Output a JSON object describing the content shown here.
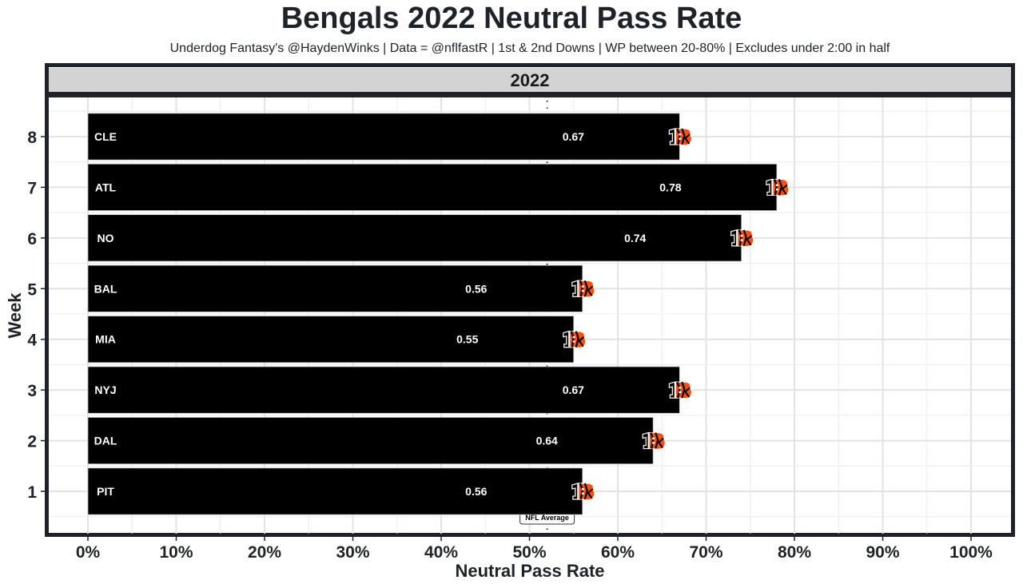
{
  "header": {
    "title": "Bengals 2022 Neutral Pass Rate",
    "subtitle": "Underdog Fantasy's @HaydenWinks | Data = @nflfastR | 1st & 2nd Downs | WP between 20-80% | Excludes under 2:00 in half"
  },
  "chart_data": {
    "type": "bar",
    "orientation": "horizontal",
    "title": "Bengals 2022 Neutral Pass Rate",
    "subtitle": "Underdog Fantasy's @HaydenWinks | Data = @nflfastR | 1st & 2nd Downs | WP between 20-80% | Excludes under 2:00 in half",
    "facet_label": "2022",
    "xlabel": "Neutral Pass Rate",
    "ylabel": "Week",
    "xlim": [
      0,
      1
    ],
    "x_ticks": [
      0,
      0.1,
      0.2,
      0.3,
      0.4,
      0.5,
      0.6,
      0.7,
      0.8,
      0.9,
      1.0
    ],
    "x_tick_labels": [
      "0%",
      "10%",
      "20%",
      "30%",
      "40%",
      "50%",
      "60%",
      "70%",
      "80%",
      "90%",
      "100%"
    ],
    "y_ticks": [
      1,
      2,
      3,
      4,
      5,
      6,
      7,
      8
    ],
    "grid": true,
    "bars": [
      {
        "week": 1,
        "opponent": "PIT",
        "value": 0.56,
        "label": "0.56"
      },
      {
        "week": 2,
        "opponent": "DAL",
        "value": 0.64,
        "label": "0.64"
      },
      {
        "week": 3,
        "opponent": "NYJ",
        "value": 0.67,
        "label": "0.67"
      },
      {
        "week": 4,
        "opponent": "MIA",
        "value": 0.55,
        "label": "0.55"
      },
      {
        "week": 5,
        "opponent": "BAL",
        "value": 0.56,
        "label": "0.56"
      },
      {
        "week": 6,
        "opponent": "NO",
        "value": 0.74,
        "label": "0.74"
      },
      {
        "week": 7,
        "opponent": "ATL",
        "value": 0.78,
        "label": "0.78"
      },
      {
        "week": 8,
        "opponent": "CLE",
        "value": 0.67,
        "label": "0.67"
      }
    ],
    "reference_line": {
      "label": "NFL Average",
      "value": 0.52,
      "style": "dotted"
    },
    "marker": "bengals-logo-icon",
    "colors": {
      "bar_fill": "#000000",
      "bar_outline": "#cccccc",
      "text_dark": "#1f2229",
      "strip_fill": "#d3d3d3",
      "panel_border": "#1f2229",
      "grid": "#e6e6e6",
      "logo_orange": "#fb4f14",
      "logo_black": "#000000"
    }
  }
}
